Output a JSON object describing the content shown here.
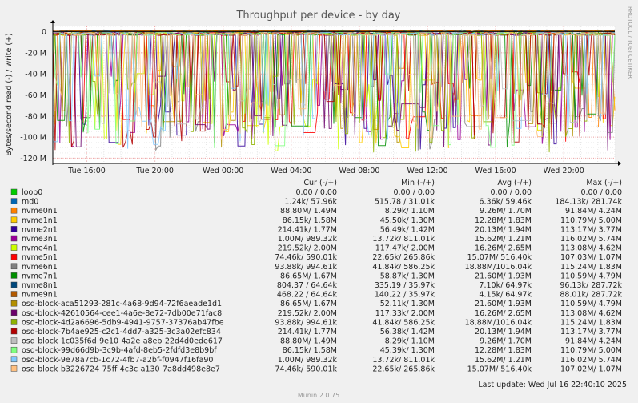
{
  "chart_data": {
    "type": "line",
    "title": "Throughput per device - by day",
    "ylabel": "Bytes/second read (-) / write (+)",
    "side_label": "RRDTOOL / TOBI OETIKER",
    "ylim": [
      -125,
      5
    ],
    "y_ticks": [
      {
        "value": 0,
        "label": "0"
      },
      {
        "value": -20,
        "label": "-20 M"
      },
      {
        "value": -40,
        "label": "-40 M"
      },
      {
        "value": -60,
        "label": "-60 M"
      },
      {
        "value": -80,
        "label": "-80 M"
      },
      {
        "value": -100,
        "label": "-100 M"
      },
      {
        "value": -120,
        "label": "-120 M"
      }
    ],
    "x_range_hours": [
      0,
      33
    ],
    "x_ticks": [
      {
        "hour": 2,
        "label": "Tue 16:00"
      },
      {
        "hour": 6,
        "label": "Tue 20:00"
      },
      {
        "hour": 10,
        "label": "Wed 00:00"
      },
      {
        "hour": 14,
        "label": "Wed 04:00"
      },
      {
        "hour": 18,
        "label": "Wed 08:00"
      },
      {
        "hour": 22,
        "label": "Wed 12:00"
      },
      {
        "hour": 26,
        "label": "Wed 16:00"
      },
      {
        "hour": 30,
        "label": "Wed 20:00"
      }
    ],
    "columns": [
      "Cur (-/+)",
      "Min (-/+)",
      "Avg (-/+)",
      "Max (-/+)"
    ],
    "series": [
      {
        "name": "loop0",
        "color": "#00cc00",
        "cur": "0.00 /    0.00",
        "min": "0.00 /    0.00",
        "avg": "0.00 /    0.00",
        "max": "0.00 /    0.00"
      },
      {
        "name": "md0",
        "color": "#0066b3",
        "cur": "1.24k/  57.96k",
        "min": "515.78 /  31.01k",
        "avg": "6.36k/  59.46k",
        "max": "184.13k/ 281.74k"
      },
      {
        "name": "nvme0n1",
        "color": "#ff8000",
        "cur": "88.80M/   1.49M",
        "min": "8.29k/   1.10M",
        "avg": "9.26M/   1.70M",
        "max": "91.84M/   4.24M"
      },
      {
        "name": "nvme1n1",
        "color": "#ffcc00",
        "cur": "86.15k/   1.58M",
        "min": "45.50k/   1.30M",
        "avg": "12.28M/   1.83M",
        "max": "110.79M/   5.00M"
      },
      {
        "name": "nvme2n1",
        "color": "#330099",
        "cur": "214.41k/   1.77M",
        "min": "56.49k/   1.42M",
        "avg": "20.13M/   1.94M",
        "max": "113.17M/   3.77M"
      },
      {
        "name": "nvme3n1",
        "color": "#990099",
        "cur": "1.00M/ 989.32k",
        "min": "13.72k/ 811.01k",
        "avg": "15.62M/   1.21M",
        "max": "116.02M/   5.74M"
      },
      {
        "name": "nvme4n1",
        "color": "#ccff00",
        "cur": "219.52k/   2.00M",
        "min": "117.47k/   2.00M",
        "avg": "16.26M/   2.65M",
        "max": "113.08M/   4.62M"
      },
      {
        "name": "nvme5n1",
        "color": "#ff0000",
        "cur": "74.46k/ 590.01k",
        "min": "22.65k/ 265.86k",
        "avg": "15.07M/ 516.40k",
        "max": "107.03M/   1.07M"
      },
      {
        "name": "nvme6n1",
        "color": "#808080",
        "cur": "93.88k/ 994.61k",
        "min": "41.84k/ 586.25k",
        "avg": "18.88M/1016.04k",
        "max": "115.24M/   1.83M"
      },
      {
        "name": "nvme7n1",
        "color": "#008f00",
        "cur": "86.65M/   1.67M",
        "min": "58.87k/   1.30M",
        "avg": "21.60M/   1.93M",
        "max": "110.59M/   4.79M"
      },
      {
        "name": "nvme8n1",
        "color": "#00487d",
        "cur": "804.37 /  64.64k",
        "min": "335.19 /  35.97k",
        "avg": "7.10k/  64.97k",
        "max": "96.13k/ 287.72k"
      },
      {
        "name": "nvme9n1",
        "color": "#b35a00",
        "cur": "468.22 /  64.64k",
        "min": "140.22 /  35.97k",
        "avg": "4.15k/  64.97k",
        "max": "88.01k/ 287.72k"
      },
      {
        "name": "osd-block-aca51293-281c-4a68-9d94-72f6aeade1d1",
        "color": "#b38f00",
        "cur": "86.65M/   1.67M",
        "min": "52.11k/   1.30M",
        "avg": "21.60M/   1.93M",
        "max": "110.59M/   4.79M"
      },
      {
        "name": "osd-block-42610564-cee1-4a6e-8e72-7db00e71fac8",
        "color": "#6b006b",
        "cur": "219.52k/   2.00M",
        "min": "117.33k/   2.00M",
        "avg": "16.26M/   2.65M",
        "max": "113.08M/   4.62M"
      },
      {
        "name": "osd-block-4d2a6696-5db9-4941-9757-37376ab47fbe",
        "color": "#8fb300",
        "cur": "93.88k/ 994.61k",
        "min": "41.84k/ 586.25k",
        "avg": "18.88M/1016.04k",
        "max": "115.24M/   1.83M"
      },
      {
        "name": "osd-block-7b4ae925-c2c1-4dd7-a325-3c3a02efc834",
        "color": "#b30000",
        "cur": "214.41k/   1.77M",
        "min": "56.38k/   1.42M",
        "avg": "20.13M/   1.94M",
        "max": "113.17M/   3.77M"
      },
      {
        "name": "osd-block-1c035f6d-9e10-4a2e-a8eb-22d4d0ede617",
        "color": "#bebebe",
        "cur": "88.80M/   1.49M",
        "min": "8.29k/   1.10M",
        "avg": "9.26M/   1.70M",
        "max": "91.84M/   4.24M"
      },
      {
        "name": "osd-block-99d66d9b-3c9b-4afd-8eb5-2fdfd3e8b9bf",
        "color": "#80ff80",
        "cur": "86.15k/   1.58M",
        "min": "45.39k/   1.30M",
        "avg": "12.28M/   1.83M",
        "max": "110.79M/   5.00M"
      },
      {
        "name": "osd-block-9e78a7cb-1c72-4fb7-a2bf-f0947f16fa90",
        "color": "#80c9ff",
        "cur": "1.00M/ 989.32k",
        "min": "13.72k/ 811.01k",
        "avg": "15.62M/   1.21M",
        "max": "116.02M/   5.74M"
      },
      {
        "name": "osd-block-b3226724-75ff-4c3c-a130-7a8dd498e8e7",
        "color": "#ffc080",
        "cur": "74.46k/ 590.01k",
        "min": "22.65k/ 265.86k",
        "avg": "15.07M/ 516.40k",
        "max": "107.02M/   1.07M"
      }
    ],
    "last_update": "Last update: Wed Jul 16 22:40:10 2025",
    "footer": "Munin 2.0.75"
  }
}
